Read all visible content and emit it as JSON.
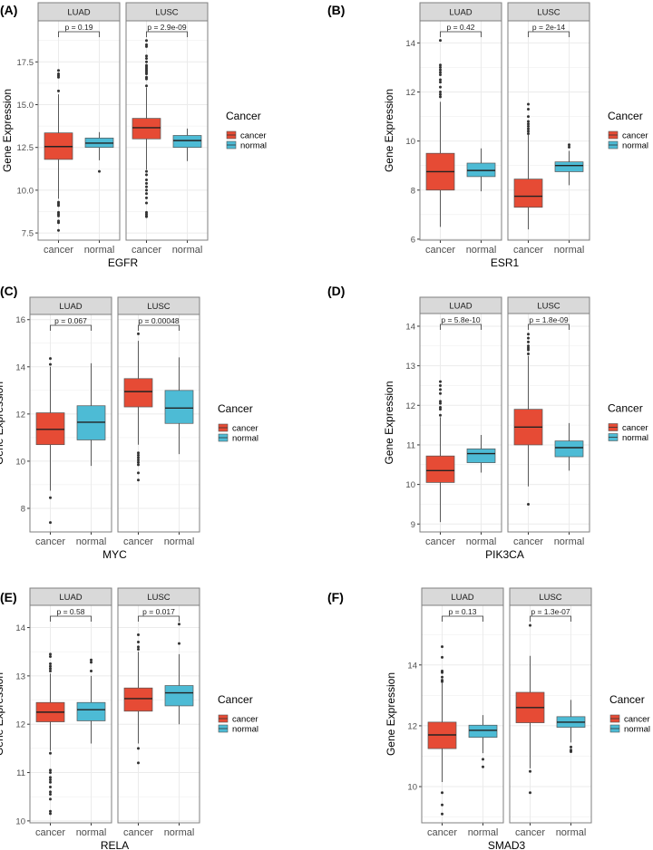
{
  "legend": {
    "title": "Cancer",
    "entries": [
      "cancer",
      "normal"
    ]
  },
  "colors": {
    "cancer": "#E64B35",
    "normal": "#4DBBD5",
    "strip": "#D9D9D9",
    "grid": "#EBEBEB",
    "outlier": "#333333"
  },
  "ylabel": "Gene Expression",
  "x_categories": [
    "cancer",
    "normal"
  ],
  "chart_data": [
    {
      "type": "box",
      "label": "(A)",
      "xlabel": "EGFR",
      "ylim": [
        7.08,
        19.9
      ],
      "ticks": [
        7.5,
        10.0,
        12.5,
        15.0,
        17.5
      ],
      "tick_labels": [
        "7.5",
        "10.0",
        "12.5",
        "15.0",
        "17.5"
      ],
      "grid": true,
      "facets": [
        {
          "name": "LUAD",
          "p": "p = 0.19",
          "boxes": [
            {
              "group": "cancer",
              "whisker_low": 9.5,
              "q1": 11.8,
              "median": 12.55,
              "q3": 13.35,
              "whisker_high": 15.6,
              "outliers": [
                9.3,
                9.2,
                9.1,
                8.7,
                8.6,
                8.5,
                8.2,
                8.1,
                7.65,
                15.8,
                16.6,
                16.7,
                16.8,
                17.0
              ]
            },
            {
              "group": "normal",
              "whisker_low": 11.75,
              "q1": 12.5,
              "median": 12.75,
              "q3": 13.05,
              "whisker_high": 13.4,
              "outliers": [
                11.1
              ]
            }
          ]
        },
        {
          "name": "LUSC",
          "p": "p = 2.9e-09",
          "boxes": [
            {
              "group": "cancer",
              "whisker_low": 11.2,
              "q1": 13.0,
              "median": 13.65,
              "q3": 14.2,
              "whisker_high": 16.0,
              "outliers": [
                16.1,
                16.5,
                16.6,
                16.8,
                16.9,
                17.0,
                17.1,
                17.2,
                17.3,
                17.5,
                17.7,
                17.85,
                18.4,
                18.5,
                18.75,
                11.1,
                10.9,
                10.6,
                10.4,
                10.2,
                10.0,
                9.8,
                9.55,
                9.25,
                8.7,
                8.6,
                8.5,
                8.45
              ]
            },
            {
              "group": "normal",
              "whisker_low": 11.7,
              "q1": 12.5,
              "median": 12.9,
              "q3": 13.2,
              "whisker_high": 13.6,
              "outliers": []
            }
          ]
        }
      ]
    },
    {
      "type": "box",
      "label": "(B)",
      "xlabel": "ESR1",
      "ylim": [
        5.96,
        14.9
      ],
      "ticks": [
        6,
        8,
        10,
        12,
        14
      ],
      "tick_labels": [
        "6",
        "8",
        "10",
        "12",
        "14"
      ],
      "grid": true,
      "facets": [
        {
          "name": "LUAD",
          "p": "p = 0.42",
          "boxes": [
            {
              "group": "cancer",
              "whisker_low": 6.5,
              "q1": 8.0,
              "median": 8.75,
              "q3": 9.5,
              "whisker_high": 11.6,
              "outliers": [
                11.8,
                11.9,
                12.0,
                12.2,
                12.4,
                12.5,
                12.7,
                12.8,
                12.9,
                13.0,
                13.1,
                14.1
              ]
            },
            {
              "group": "normal",
              "whisker_low": 7.95,
              "q1": 8.55,
              "median": 8.8,
              "q3": 9.1,
              "whisker_high": 9.7,
              "outliers": []
            }
          ]
        },
        {
          "name": "LUSC",
          "p": "p = 2e-14",
          "boxes": [
            {
              "group": "cancer",
              "whisker_low": 6.4,
              "q1": 7.3,
              "median": 7.75,
              "q3": 8.45,
              "whisker_high": 10.25,
              "outliers": [
                10.3,
                10.4,
                10.5,
                10.6,
                10.7,
                10.8,
                11.0,
                11.3,
                11.5
              ]
            },
            {
              "group": "normal",
              "whisker_low": 8.2,
              "q1": 8.75,
              "median": 9.0,
              "q3": 9.15,
              "whisker_high": 9.6,
              "outliers": [
                9.75,
                9.85
              ]
            }
          ]
        }
      ]
    },
    {
      "type": "box",
      "label": "(C)",
      "xlabel": "MYC",
      "ylim": [
        7.0,
        16.22
      ],
      "ticks": [
        8,
        10,
        12,
        14,
        16
      ],
      "tick_labels": [
        "8",
        "10",
        "12",
        "14",
        "16"
      ],
      "grid": true,
      "facets": [
        {
          "name": "LUAD",
          "p": "p = 0.067",
          "boxes": [
            {
              "group": "cancer",
              "whisker_low": 8.75,
              "q1": 10.7,
              "median": 11.35,
              "q3": 12.05,
              "whisker_high": 14.0,
              "outliers": [
                14.1,
                14.35,
                8.45,
                7.4
              ]
            },
            {
              "group": "normal",
              "whisker_low": 9.8,
              "q1": 10.9,
              "median": 11.65,
              "q3": 12.35,
              "whisker_high": 14.15,
              "outliers": []
            }
          ]
        },
        {
          "name": "LUSC",
          "p": "p = 0.00048",
          "boxes": [
            {
              "group": "cancer",
              "whisker_low": 10.7,
              "q1": 12.3,
              "median": 12.95,
              "q3": 13.5,
              "whisker_high": 15.1,
              "outliers": [
                15.4,
                10.35,
                10.25,
                10.15,
                10.05,
                9.95,
                9.85,
                9.5,
                9.2
              ]
            },
            {
              "group": "normal",
              "whisker_low": 10.3,
              "q1": 11.6,
              "median": 12.25,
              "q3": 13.0,
              "whisker_high": 14.4,
              "outliers": []
            }
          ]
        }
      ]
    },
    {
      "type": "box",
      "label": "(D)",
      "xlabel": "PIK3CA",
      "ylim": [
        8.8,
        14.32
      ],
      "ticks": [
        9,
        10,
        11,
        12,
        13,
        14
      ],
      "tick_labels": [
        "9",
        "10",
        "11",
        "12",
        "13",
        "14"
      ],
      "grid": true,
      "facets": [
        {
          "name": "LUAD",
          "p": "p = 5.8e-10",
          "boxes": [
            {
              "group": "cancer",
              "whisker_low": 9.05,
              "q1": 10.05,
              "median": 10.35,
              "q3": 10.72,
              "whisker_high": 11.7,
              "outliers": [
                11.75,
                11.9,
                11.95,
                12.05,
                12.1,
                12.3,
                12.4,
                12.5,
                12.6
              ]
            },
            {
              "group": "normal",
              "whisker_low": 10.3,
              "q1": 10.55,
              "median": 10.78,
              "q3": 10.9,
              "whisker_high": 11.25,
              "outliers": []
            }
          ]
        },
        {
          "name": "LUSC",
          "p": "p = 1.8e-09",
          "boxes": [
            {
              "group": "cancer",
              "whisker_low": 9.95,
              "q1": 11.0,
              "median": 11.45,
              "q3": 11.9,
              "whisker_high": 13.25,
              "outliers": [
                13.3,
                13.4,
                13.45,
                13.5,
                13.6,
                13.7,
                13.8,
                9.5
              ]
            },
            {
              "group": "normal",
              "whisker_low": 10.35,
              "q1": 10.7,
              "median": 10.93,
              "q3": 11.1,
              "whisker_high": 11.55,
              "outliers": []
            }
          ]
        }
      ]
    },
    {
      "type": "box",
      "label": "(E)",
      "xlabel": "RELA",
      "ylim": [
        9.96,
        14.46
      ],
      "ticks": [
        10,
        11,
        12,
        13,
        14
      ],
      "tick_labels": [
        "10",
        "11",
        "12",
        "13",
        "14"
      ],
      "grid": true,
      "facets": [
        {
          "name": "LUAD",
          "p": "p = 0.58",
          "boxes": [
            {
              "group": "cancer",
              "whisker_low": 11.45,
              "q1": 12.05,
              "median": 12.25,
              "q3": 12.45,
              "whisker_high": 13.05,
              "outliers": [
                13.1,
                13.15,
                13.2,
                13.25,
                13.4,
                13.45,
                11.4,
                11.05,
                11.0,
                10.9,
                10.85,
                10.8,
                10.7,
                10.6,
                10.55,
                10.45,
                10.2,
                10.15
              ]
            },
            {
              "group": "normal",
              "whisker_low": 11.6,
              "q1": 12.07,
              "median": 12.3,
              "q3": 12.45,
              "whisker_high": 13.0,
              "outliers": [
                13.1,
                13.28,
                13.33
              ]
            }
          ]
        },
        {
          "name": "LUSC",
          "p": "p = 0.017",
          "boxes": [
            {
              "group": "cancer",
              "whisker_low": 11.6,
              "q1": 12.27,
              "median": 12.53,
              "q3": 12.75,
              "whisker_high": 13.5,
              "outliers": [
                13.55,
                13.6,
                13.7,
                13.85,
                11.5,
                11.2
              ]
            },
            {
              "group": "normal",
              "whisker_low": 12.0,
              "q1": 12.38,
              "median": 12.65,
              "q3": 12.8,
              "whisker_high": 13.45,
              "outliers": [
                13.67,
                14.07
              ]
            }
          ]
        }
      ]
    },
    {
      "type": "box",
      "label": "(F)",
      "xlabel": "SMAD3",
      "ylim": [
        8.81,
        15.96
      ],
      "ticks": [
        10,
        12,
        14
      ],
      "tick_labels": [
        "10",
        "12",
        "14"
      ],
      "grid": true,
      "facets": [
        {
          "name": "LUAD",
          "p": "p = 0.13",
          "boxes": [
            {
              "group": "cancer",
              "whisker_low": 10.15,
              "q1": 11.25,
              "median": 11.7,
              "q3": 12.12,
              "whisker_high": 13.4,
              "outliers": [
                13.45,
                13.5,
                13.6,
                13.75,
                13.8,
                14.25,
                14.6,
                9.8,
                9.4,
                9.1
              ]
            },
            {
              "group": "normal",
              "whisker_low": 11.1,
              "q1": 11.62,
              "median": 11.85,
              "q3": 12.02,
              "whisker_high": 12.35,
              "outliers": [
                10.9,
                10.65
              ]
            }
          ]
        },
        {
          "name": "LUSC",
          "p": "p = 1.3e-07",
          "boxes": [
            {
              "group": "cancer",
              "whisker_low": 10.6,
              "q1": 12.1,
              "median": 12.6,
              "q3": 13.1,
              "whisker_high": 14.3,
              "outliers": [
                15.3,
                10.5,
                9.8
              ]
            },
            {
              "group": "normal",
              "whisker_low": 11.45,
              "q1": 11.95,
              "median": 12.12,
              "q3": 12.3,
              "whisker_high": 12.85,
              "outliers": [
                11.3,
                11.2,
                11.15
              ]
            }
          ]
        }
      ]
    }
  ]
}
